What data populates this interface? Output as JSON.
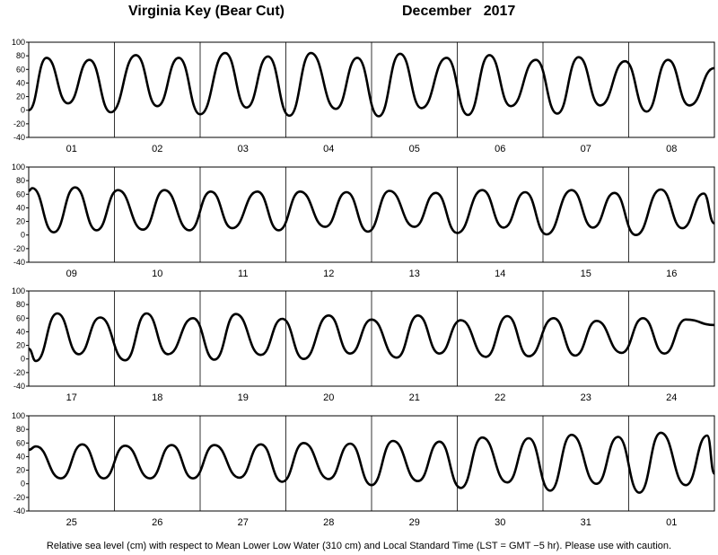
{
  "title": {
    "station": "Virginia Key (Bear Cut)",
    "month": "December",
    "year": "2017"
  },
  "footer": "Relative sea level (cm) with respect to Mean Lower Low Water (310 cm) and Local Standard Time (LST = GMT −5 hr). Please use with caution.",
  "chart_data": {
    "type": "line",
    "ylabel": "Relative sea level (cm)",
    "ylim": [
      -40,
      100
    ],
    "yticks": [
      -40,
      -20,
      0,
      20,
      40,
      60,
      80,
      100
    ],
    "grid": "vertical day separators",
    "panels": [
      {
        "days": [
          "01",
          "02",
          "03",
          "04",
          "05",
          "06",
          "07",
          "08"
        ],
        "x": [
          "01 00:00",
          "01 05:00",
          "01 11:00",
          "01 17:00",
          "01 23:00",
          "02 06:00",
          "02 12:00",
          "02 18:00",
          "03 00:00",
          "03 07:00",
          "03 13:00",
          "03 19:00",
          "04 01:00",
          "04 07:00",
          "04 14:00",
          "04 20:00",
          "05 02:00",
          "05 08:00",
          "05 14:00",
          "05 21:00",
          "06 03:00",
          "06 09:00",
          "06 15:00",
          "06 22:00",
          "07 04:00",
          "07 10:00",
          "07 16:00",
          "07 23:00",
          "08 05:00",
          "08 11:00",
          "08 17:00",
          "09 00:00"
        ],
        "y": [
          0,
          77,
          10,
          74,
          -3,
          81,
          6,
          77,
          -6,
          84,
          4,
          79,
          -8,
          84,
          2,
          77,
          -9,
          83,
          3,
          77,
          -7,
          81,
          6,
          74,
          -5,
          78,
          7,
          72,
          -2,
          74,
          7,
          62
        ]
      },
      {
        "days": [
          "09",
          "10",
          "11",
          "12",
          "13",
          "14",
          "15",
          "16"
        ],
        "x": [
          "09 00:00",
          "09 01:00",
          "09 07:00",
          "09 13:00",
          "09 19:00",
          "10 01:00",
          "10 08:00",
          "10 14:00",
          "10 21:00",
          "11 03:00",
          "11 09:00",
          "11 16:00",
          "11 22:00",
          "12 04:00",
          "12 11:00",
          "12 17:00",
          "12 23:00",
          "13 05:00",
          "13 12:00",
          "13 18:00",
          "14 00:00",
          "14 07:00",
          "14 13:00",
          "14 19:00",
          "15 01:00",
          "15 08:00",
          "15 14:00",
          "15 20:00",
          "16 02:00",
          "16 09:00",
          "16 15:00",
          "16 21:00",
          "17 00:00"
        ],
        "y": [
          65,
          69,
          4,
          70,
          7,
          66,
          8,
          66,
          7,
          64,
          10,
          64,
          7,
          64,
          12,
          63,
          5,
          65,
          12,
          62,
          3,
          66,
          11,
          63,
          1,
          66,
          11,
          62,
          0,
          67,
          10,
          61,
          17
        ]
      },
      {
        "days": [
          "17",
          "18",
          "19",
          "20",
          "21",
          "22",
          "23",
          "24"
        ],
        "x": [
          "17 00:00",
          "17 02:00",
          "17 08:00",
          "17 14:00",
          "17 20:00",
          "18 03:00",
          "18 09:00",
          "18 15:00",
          "18 22:00",
          "19 04:00",
          "19 10:00",
          "19 17:00",
          "19 23:00",
          "20 05:00",
          "20 12:00",
          "20 18:00",
          "21 00:00",
          "21 07:00",
          "21 13:00",
          "21 19:00",
          "22 01:00",
          "22 08:00",
          "22 14:00",
          "22 20:00",
          "23 03:00",
          "23 09:00",
          "23 15:00",
          "23 22:00",
          "24 04:00",
          "24 10:00",
          "24 16:00",
          "25 00:00"
        ],
        "y": [
          15,
          -3,
          67,
          7,
          61,
          -2,
          67,
          7,
          60,
          -1,
          66,
          6,
          59,
          0,
          64,
          8,
          58,
          2,
          64,
          8,
          57,
          3,
          63,
          4,
          60,
          5,
          56,
          9,
          60,
          8,
          58,
          50
        ]
      },
      {
        "days": [
          "25",
          "26",
          "27",
          "28",
          "29",
          "30",
          "31",
          "01"
        ],
        "x": [
          "25 00:00",
          "25 02:00",
          "25 09:00",
          "25 15:00",
          "25 21:00",
          "26 03:00",
          "26 10:00",
          "26 16:00",
          "26 22:00",
          "27 04:00",
          "27 11:00",
          "27 17:00",
          "27 23:00",
          "28 05:00",
          "28 12:00",
          "28 18:00",
          "29 00:00",
          "29 06:00",
          "29 13:00",
          "29 19:00",
          "30 01:00",
          "30 07:00",
          "30 14:00",
          "30 20:00",
          "31 02:00",
          "31 08:00",
          "31 15:00",
          "31 21:00",
          "01 03:00",
          "01 09:00",
          "01 16:00",
          "01 22:00",
          "02 00:00"
        ],
        "y": [
          50,
          55,
          8,
          58,
          8,
          56,
          8,
          57,
          8,
          57,
          9,
          58,
          3,
          60,
          7,
          59,
          -2,
          63,
          4,
          62,
          -6,
          68,
          2,
          67,
          -10,
          72,
          0,
          69,
          -13,
          75,
          -2,
          71,
          15
        ]
      }
    ]
  }
}
